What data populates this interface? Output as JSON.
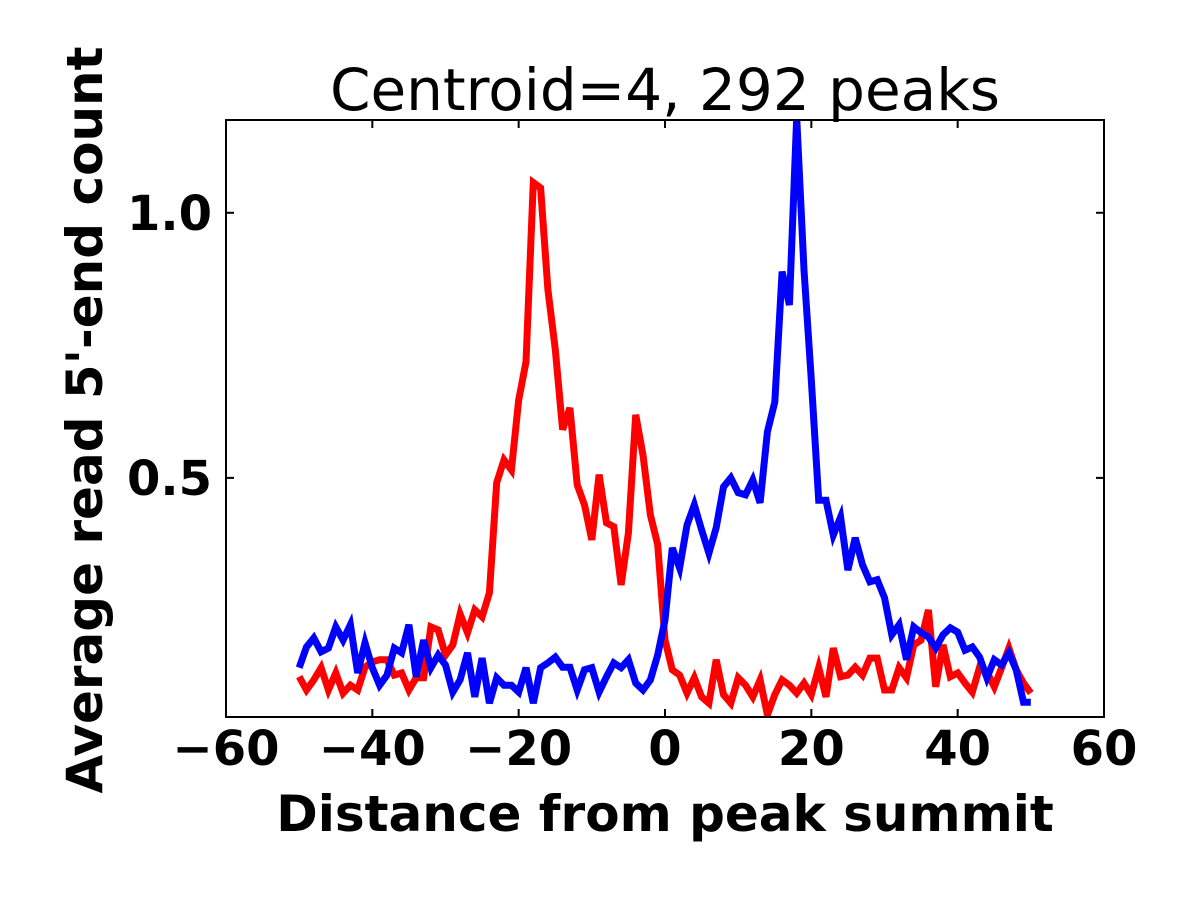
{
  "chart_data": {
    "type": "line",
    "title": "Centroid=4, 292 peaks",
    "xlabel": "Distance from peak summit",
    "ylabel": "Average read 5'-end count",
    "xlim": [
      -60,
      60
    ],
    "ylim": [
      0.049,
      1.175
    ],
    "xticks": [
      -60,
      -40,
      -20,
      0,
      20,
      40,
      60
    ],
    "xtick_labels": [
      "−60",
      "−40",
      "−20",
      "0",
      "20",
      "40",
      "60"
    ],
    "yticks": [
      0.5,
      1.0
    ],
    "ytick_labels": [
      "0.5",
      "1.0"
    ],
    "grid": false,
    "x_start": -50,
    "x_step": 1,
    "series": [
      {
        "name": "red",
        "color": "#ff0000",
        "values": [
          0.125,
          0.1,
          0.119,
          0.142,
          0.1,
          0.132,
          0.094,
          0.109,
          0.1,
          0.143,
          0.153,
          0.157,
          0.157,
          0.128,
          0.132,
          0.1,
          0.123,
          0.123,
          0.219,
          0.213,
          0.166,
          0.185,
          0.243,
          0.208,
          0.251,
          0.238,
          0.283,
          0.491,
          0.534,
          0.515,
          0.647,
          0.719,
          1.057,
          1.047,
          0.855,
          0.742,
          0.591,
          0.632,
          0.487,
          0.449,
          0.383,
          0.506,
          0.415,
          0.408,
          0.298,
          0.396,
          0.619,
          0.543,
          0.43,
          0.374,
          0.194,
          0.138,
          0.128,
          0.094,
          0.123,
          0.087,
          0.075,
          0.157,
          0.091,
          0.075,
          0.123,
          0.109,
          0.087,
          0.119,
          0.053,
          0.091,
          0.119,
          0.109,
          0.094,
          0.113,
          0.091,
          0.142,
          0.087,
          0.179,
          0.125,
          0.128,
          0.143,
          0.128,
          0.16,
          0.16,
          0.1,
          0.1,
          0.142,
          0.123,
          0.185,
          0.194,
          0.251,
          0.106,
          0.185,
          0.125,
          0.132,
          0.113,
          0.096,
          0.143,
          0.134,
          0.106,
          0.142,
          0.179,
          0.138,
          0.113,
          0.094
        ]
      },
      {
        "name": "blue",
        "color": "#0000ff",
        "values": [
          0.142,
          0.181,
          0.198,
          0.172,
          0.179,
          0.219,
          0.194,
          0.223,
          0.132,
          0.189,
          0.142,
          0.109,
          0.128,
          0.179,
          0.17,
          0.223,
          0.125,
          0.194,
          0.142,
          0.166,
          0.147,
          0.096,
          0.119,
          0.17,
          0.087,
          0.16,
          0.075,
          0.123,
          0.109,
          0.109,
          0.096,
          0.142,
          0.075,
          0.142,
          0.151,
          0.162,
          0.143,
          0.143,
          0.1,
          0.138,
          0.142,
          0.096,
          0.125,
          0.151,
          0.142,
          0.157,
          0.113,
          0.1,
          0.119,
          0.166,
          0.232,
          0.368,
          0.33,
          0.411,
          0.449,
          0.402,
          0.358,
          0.406,
          0.483,
          0.5,
          0.472,
          0.468,
          0.496,
          0.453,
          0.587,
          0.643,
          0.889,
          0.826,
          1.18,
          0.892,
          0.685,
          0.458,
          0.458,
          0.392,
          0.426,
          0.326,
          0.387,
          0.336,
          0.304,
          0.308,
          0.274,
          0.204,
          0.223,
          0.157,
          0.219,
          0.208,
          0.2,
          0.179,
          0.204,
          0.217,
          0.209,
          0.175,
          0.181,
          0.162,
          0.123,
          0.157,
          0.147,
          0.17,
          0.138,
          0.077,
          0.077
        ]
      }
    ]
  }
}
